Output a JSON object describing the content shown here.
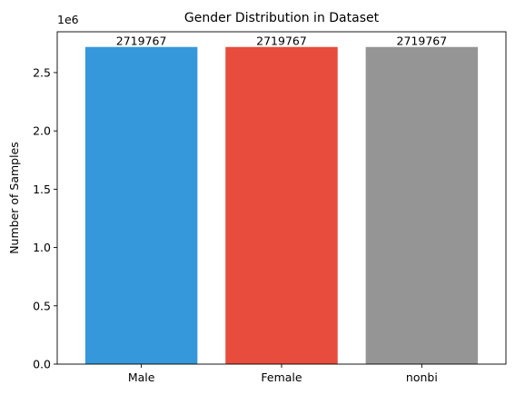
{
  "chart_data": {
    "type": "bar",
    "title": "Gender Distribution in Dataset",
    "xlabel": "",
    "ylabel": "Number of Samples",
    "scale_label": "1e6",
    "categories": [
      "Male",
      "Female",
      "nonbi"
    ],
    "values": [
      2719767,
      2719767,
      2719767
    ],
    "colors": [
      "#3498db",
      "#e74c3c",
      "#959595"
    ],
    "ylim": [
      0,
      2850000
    ],
    "yticks": [
      0,
      500000,
      1000000,
      1500000,
      2000000,
      2500000
    ],
    "ytick_labels": [
      "0.0",
      "0.5",
      "1.0",
      "1.5",
      "2.0",
      "2.5"
    ],
    "grid": false,
    "legend": "none"
  }
}
